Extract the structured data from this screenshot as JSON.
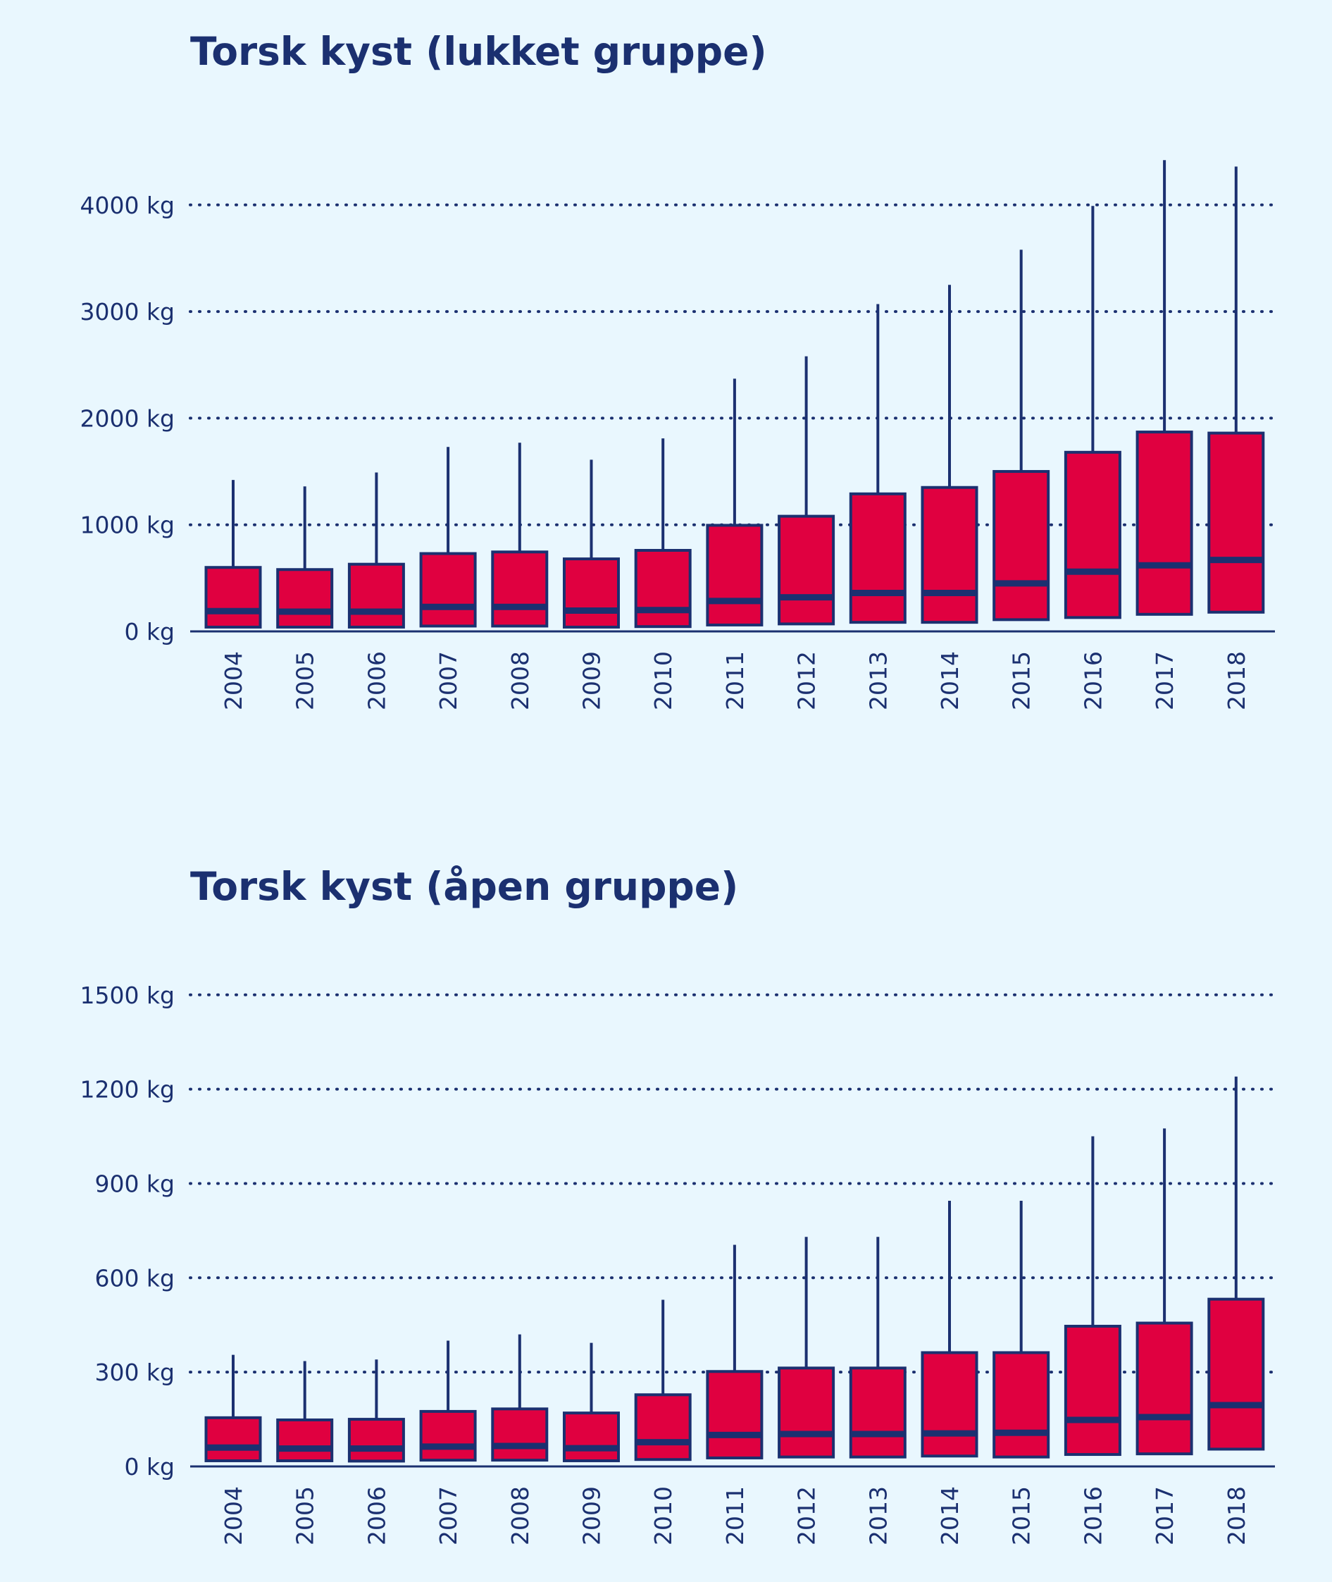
{
  "colors": {
    "background": "#e9f7fe",
    "box_fill": "#e00040",
    "ink": "#1b3070"
  },
  "chart_data": [
    {
      "type": "box",
      "title": "Torsk kyst (lukket gruppe)",
      "categories": [
        "2004",
        "2005",
        "2006",
        "2007",
        "2008",
        "2009",
        "2010",
        "2011",
        "2012",
        "2013",
        "2014",
        "2015",
        "2016",
        "2017",
        "2018"
      ],
      "yticks": [
        0,
        1000,
        2000,
        3000,
        4000
      ],
      "ytick_labels": [
        "0 kg",
        "1000 kg",
        "2000 kg",
        "3000 kg",
        "4000 kg"
      ],
      "ylim": [
        0,
        4600
      ],
      "grid": true,
      "boxes": [
        {
          "low": 40,
          "q1": 40,
          "median": 190,
          "q3": 600,
          "high": 1420
        },
        {
          "low": 40,
          "q1": 40,
          "median": 185,
          "q3": 580,
          "high": 1360
        },
        {
          "low": 40,
          "q1": 40,
          "median": 185,
          "q3": 630,
          "high": 1490
        },
        {
          "low": 50,
          "q1": 50,
          "median": 230,
          "q3": 730,
          "high": 1730
        },
        {
          "low": 50,
          "q1": 50,
          "median": 230,
          "q3": 745,
          "high": 1770
        },
        {
          "low": 40,
          "q1": 40,
          "median": 195,
          "q3": 680,
          "high": 1610
        },
        {
          "low": 45,
          "q1": 45,
          "median": 200,
          "q3": 760,
          "high": 1810
        },
        {
          "low": 60,
          "q1": 60,
          "median": 285,
          "q3": 995,
          "high": 2370
        },
        {
          "low": 70,
          "q1": 70,
          "median": 320,
          "q3": 1080,
          "high": 2580
        },
        {
          "low": 85,
          "q1": 85,
          "median": 360,
          "q3": 1290,
          "high": 3070
        },
        {
          "low": 85,
          "q1": 85,
          "median": 360,
          "q3": 1350,
          "high": 3250
        },
        {
          "low": 110,
          "q1": 110,
          "median": 450,
          "q3": 1500,
          "high": 3580
        },
        {
          "low": 130,
          "q1": 130,
          "median": 560,
          "q3": 1680,
          "high": 3990
        },
        {
          "low": 160,
          "q1": 160,
          "median": 620,
          "q3": 1870,
          "high": 4420
        },
        {
          "low": 180,
          "q1": 180,
          "median": 670,
          "q3": 1860,
          "high": 4360
        }
      ]
    },
    {
      "type": "box",
      "title": "Torsk kyst (åpen gruppe)",
      "categories": [
        "2004",
        "2005",
        "2006",
        "2007",
        "2008",
        "2009",
        "2010",
        "2011",
        "2012",
        "2013",
        "2014",
        "2015",
        "2016",
        "2017",
        "2018"
      ],
      "yticks": [
        0,
        300,
        600,
        900,
        1200,
        1500
      ],
      "ytick_labels": [
        "0 kg",
        "300 kg",
        "600 kg",
        "900 kg",
        "1200 kg",
        "1500 kg"
      ],
      "ylim": [
        0,
        1560
      ],
      "grid": true,
      "boxes": [
        {
          "low": 18,
          "q1": 18,
          "median": 60,
          "q3": 155,
          "high": 355
        },
        {
          "low": 18,
          "q1": 18,
          "median": 57,
          "q3": 148,
          "high": 335
        },
        {
          "low": 17,
          "q1": 17,
          "median": 57,
          "q3": 150,
          "high": 340
        },
        {
          "low": 20,
          "q1": 20,
          "median": 63,
          "q3": 175,
          "high": 400
        },
        {
          "low": 20,
          "q1": 20,
          "median": 65,
          "q3": 183,
          "high": 420
        },
        {
          "low": 18,
          "q1": 18,
          "median": 58,
          "q3": 170,
          "high": 393
        },
        {
          "low": 22,
          "q1": 22,
          "median": 77,
          "q3": 228,
          "high": 530
        },
        {
          "low": 27,
          "q1": 27,
          "median": 100,
          "q3": 302,
          "high": 705
        },
        {
          "low": 30,
          "q1": 30,
          "median": 103,
          "q3": 313,
          "high": 730
        },
        {
          "low": 30,
          "q1": 30,
          "median": 103,
          "q3": 313,
          "high": 730
        },
        {
          "low": 33,
          "q1": 33,
          "median": 105,
          "q3": 362,
          "high": 845
        },
        {
          "low": 30,
          "q1": 30,
          "median": 107,
          "q3": 362,
          "high": 845
        },
        {
          "low": 38,
          "q1": 38,
          "median": 148,
          "q3": 446,
          "high": 1050
        },
        {
          "low": 40,
          "q1": 40,
          "median": 157,
          "q3": 456,
          "high": 1075
        },
        {
          "low": 55,
          "q1": 55,
          "median": 195,
          "q3": 532,
          "high": 1240
        }
      ]
    }
  ]
}
